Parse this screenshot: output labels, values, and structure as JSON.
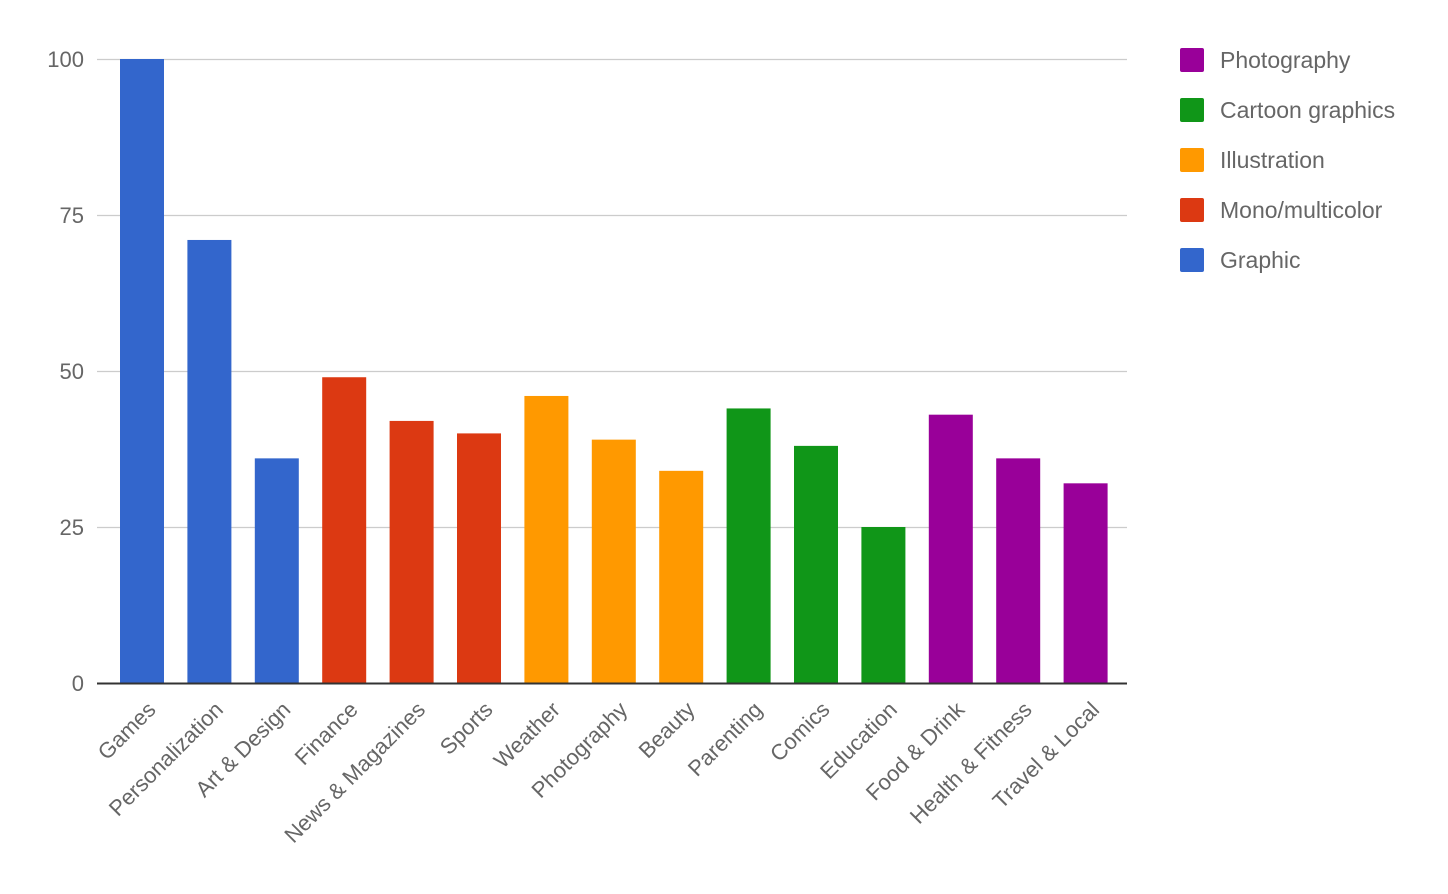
{
  "chart_data": {
    "type": "bar",
    "title": "",
    "xlabel": "",
    "ylabel": "",
    "ylim": [
      0,
      100
    ],
    "yticks": [
      0,
      25,
      50,
      75,
      100
    ],
    "grid": true,
    "legend_position": "right",
    "categories": [
      "Games",
      "Personalization",
      "Art & Design",
      "Finance",
      "News & Magazines",
      "Sports",
      "Weather",
      "Photography",
      "Beauty",
      "Parenting",
      "Comics",
      "Education",
      "Food & Drink",
      "Health & Fitness",
      "Travel & Local"
    ],
    "values": [
      100,
      71,
      36,
      49,
      42,
      40,
      46,
      39,
      34,
      44,
      38,
      25,
      43,
      36,
      32
    ],
    "groups": [
      "Graphic",
      "Graphic",
      "Graphic",
      "Mono/multicolor",
      "Mono/multicolor",
      "Mono/multicolor",
      "Illustration",
      "Illustration",
      "Illustration",
      "Cartoon graphics",
      "Cartoon graphics",
      "Cartoon graphics",
      "Photography",
      "Photography",
      "Photography"
    ],
    "legend": [
      {
        "name": "Photography",
        "color": "#990099"
      },
      {
        "name": "Cartoon graphics",
        "color": "#109618"
      },
      {
        "name": "Illustration",
        "color": "#ff9900"
      },
      {
        "name": "Mono/multicolor",
        "color": "#dc3912"
      },
      {
        "name": "Graphic",
        "color": "#3366cc"
      }
    ]
  }
}
